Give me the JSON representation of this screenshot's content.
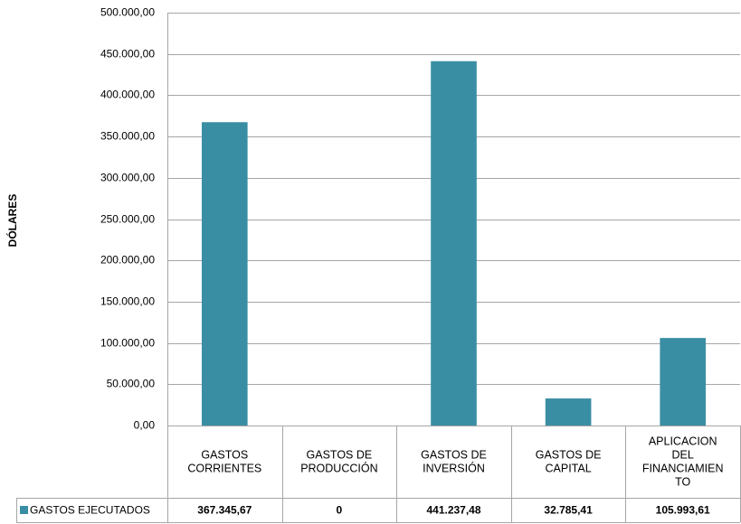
{
  "chart_data": {
    "type": "bar",
    "title": "",
    "xlabel": "",
    "ylabel": "DÓLARES",
    "categories": [
      [
        "GASTOS",
        "CORRIENTES"
      ],
      [
        "GASTOS DE",
        "PRODUCCIÓN"
      ],
      [
        "GASTOS DE",
        "INVERSIÓN"
      ],
      [
        "GASTOS DE",
        "CAPITAL"
      ],
      [
        "APLICACION",
        "DEL",
        "FINANCIAMIEN",
        "TO"
      ]
    ],
    "series": [
      {
        "name": "GASTOS EJECUTADOS",
        "values": [
          367345.67,
          0,
          441237.48,
          32785.41,
          105993.61
        ],
        "value_labels": [
          "367.345,67",
          "0",
          "441.237,48",
          "32.785,41",
          "105.993,61"
        ],
        "color": "#3A8EA4"
      }
    ],
    "ylim": [
      0,
      500000
    ],
    "yticks": [
      0,
      50000,
      100000,
      150000,
      200000,
      250000,
      300000,
      350000,
      400000,
      450000,
      500000
    ],
    "ytick_labels": [
      "0,00",
      "50.000,00",
      "100.000,00",
      "150.000,00",
      "200.000,00",
      "250.000,00",
      "300.000,00",
      "350.000,00",
      "400.000,00",
      "450.000,00",
      "500.000,00"
    ],
    "grid": true,
    "data_table": true,
    "gridline_color": "#A6A6A6"
  }
}
